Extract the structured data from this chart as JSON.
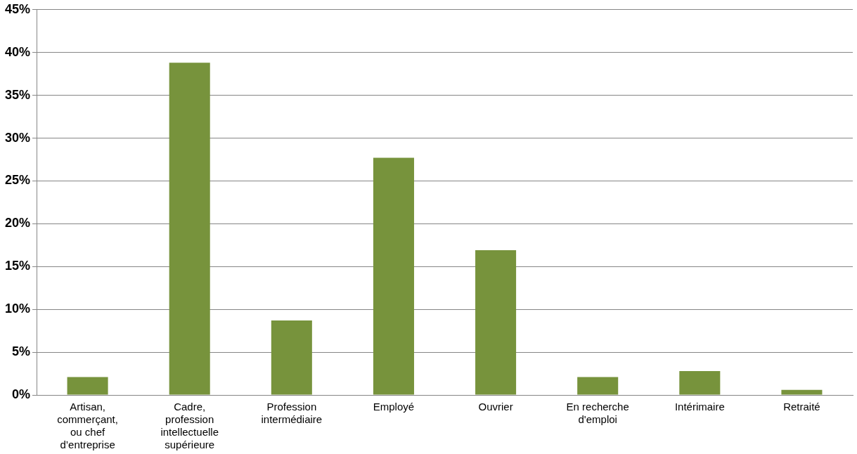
{
  "chart_data": {
    "type": "bar",
    "categories": [
      "Artisan, commerçant, ou chef d’entreprise",
      "Cadre, profession intellectuelle supérieure",
      "Profession intermédiaire",
      "Employé",
      "Ouvrier",
      "En recherche d'emploi",
      "Intérimaire",
      "Retraité"
    ],
    "values": [
      2.1,
      38.8,
      8.7,
      27.7,
      16.9,
      2.1,
      2.8,
      0.6
    ],
    "color": "#77933c",
    "ylim": [
      0,
      45
    ],
    "yticks": [
      {
        "value": 0,
        "label": "0%"
      },
      {
        "value": 5,
        "label": "5%"
      },
      {
        "value": 10,
        "label": "10%"
      },
      {
        "value": 15,
        "label": "15%"
      },
      {
        "value": 20,
        "label": "20%"
      },
      {
        "value": 25,
        "label": "25%"
      },
      {
        "value": 30,
        "label": "30%"
      },
      {
        "value": 35,
        "label": "35%"
      },
      {
        "value": 40,
        "label": "40%"
      },
      {
        "value": 45,
        "label": "45%"
      }
    ],
    "grid": "y"
  }
}
